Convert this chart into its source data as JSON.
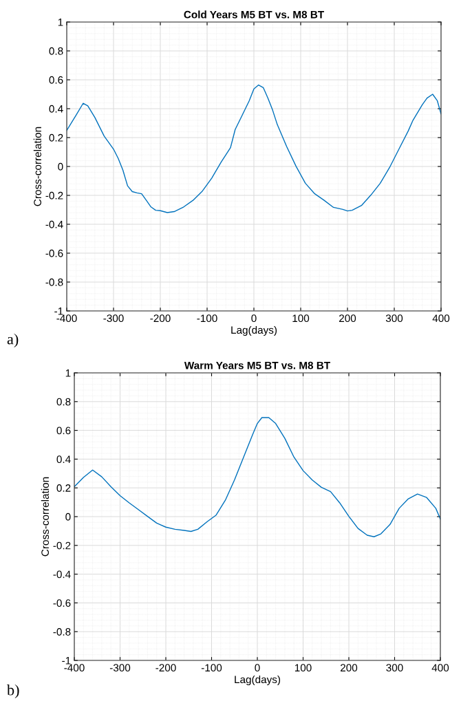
{
  "chart_data": [
    {
      "type": "line",
      "title": "Cold Years M5 BT vs. M8 BT",
      "xlabel": "Lag(days)",
      "ylabel": "Cross-correlation",
      "annotations": [
        "a)"
      ],
      "series": [
        {
          "color": "#0072bd",
          "x": [
            -400,
            -380,
            -365,
            -355,
            -340,
            -320,
            -300,
            -290,
            -280,
            -270,
            -260,
            -250,
            -240,
            -230,
            -220,
            -210,
            -200,
            -185,
            -170,
            -150,
            -130,
            -110,
            -90,
            -70,
            -50,
            -40,
            -25,
            -10,
            0,
            10,
            20,
            30,
            40,
            50,
            70,
            90,
            110,
            130,
            150,
            170,
            190,
            200,
            210,
            230,
            250,
            270,
            290,
            310,
            330,
            340,
            360,
            370,
            382,
            392,
            400
          ],
          "values": [
            0.25,
            0.355,
            0.437,
            0.42,
            0.34,
            0.21,
            0.12,
            0.056,
            -0.025,
            -0.134,
            -0.174,
            -0.183,
            -0.189,
            -0.234,
            -0.28,
            -0.303,
            -0.306,
            -0.319,
            -0.312,
            -0.28,
            -0.234,
            -0.17,
            -0.08,
            0.03,
            0.13,
            0.256,
            0.355,
            0.455,
            0.537,
            0.564,
            0.546,
            0.473,
            0.39,
            0.29,
            0.138,
            0.002,
            -0.116,
            -0.189,
            -0.234,
            -0.283,
            -0.297,
            -0.308,
            -0.303,
            -0.27,
            -0.198,
            -0.116,
            -0.007,
            0.12,
            0.247,
            0.32,
            0.428,
            0.473,
            0.5,
            0.455,
            0.364
          ]
        }
      ],
      "xlim": [
        -400,
        400
      ],
      "xticks": [
        -400,
        -300,
        -200,
        -100,
        0,
        100,
        200,
        300,
        400
      ],
      "ylim": [
        -1,
        1
      ],
      "yticks": [
        -1,
        -0.8,
        -0.6,
        -0.4,
        -0.2,
        0,
        0.2,
        0.4,
        0.6,
        0.8,
        1
      ],
      "grid": true,
      "marker": "none",
      "line_style": "solid"
    },
    {
      "type": "line",
      "title": "Warm Years M5 BT vs. M8 BT",
      "xlabel": "Lag(days)",
      "ylabel": "Cross-correlation",
      "annotations": [
        "b)"
      ],
      "series": [
        {
          "color": "#0072bd",
          "x": [
            -400,
            -380,
            -360,
            -340,
            -320,
            -300,
            -280,
            -260,
            -240,
            -220,
            -200,
            -180,
            -160,
            -145,
            -130,
            -110,
            -90,
            -70,
            -50,
            -30,
            -10,
            0,
            10,
            25,
            40,
            60,
            80,
            100,
            120,
            140,
            160,
            180,
            200,
            220,
            240,
            255,
            270,
            290,
            310,
            330,
            350,
            370,
            390,
            400
          ],
          "values": [
            0.208,
            0.273,
            0.324,
            0.277,
            0.208,
            0.146,
            0.096,
            0.049,
            0.002,
            -0.045,
            -0.073,
            -0.088,
            -0.096,
            -0.103,
            -0.088,
            -0.036,
            0.011,
            0.114,
            0.255,
            0.414,
            0.573,
            0.648,
            0.689,
            0.689,
            0.648,
            0.545,
            0.414,
            0.32,
            0.255,
            0.204,
            0.174,
            0.096,
            0.002,
            -0.082,
            -0.129,
            -0.14,
            -0.12,
            -0.054,
            0.058,
            0.124,
            0.157,
            0.133,
            0.058,
            -0.017
          ]
        }
      ],
      "xlim": [
        -400,
        400
      ],
      "xticks": [
        -400,
        -300,
        -200,
        -100,
        0,
        100,
        200,
        300,
        400
      ],
      "ylim": [
        -1,
        1
      ],
      "yticks": [
        -1,
        -0.8,
        -0.6,
        -0.4,
        -0.2,
        0,
        0.2,
        0.4,
        0.6,
        0.8,
        1
      ],
      "grid": true,
      "marker": "none",
      "line_style": "solid"
    }
  ]
}
